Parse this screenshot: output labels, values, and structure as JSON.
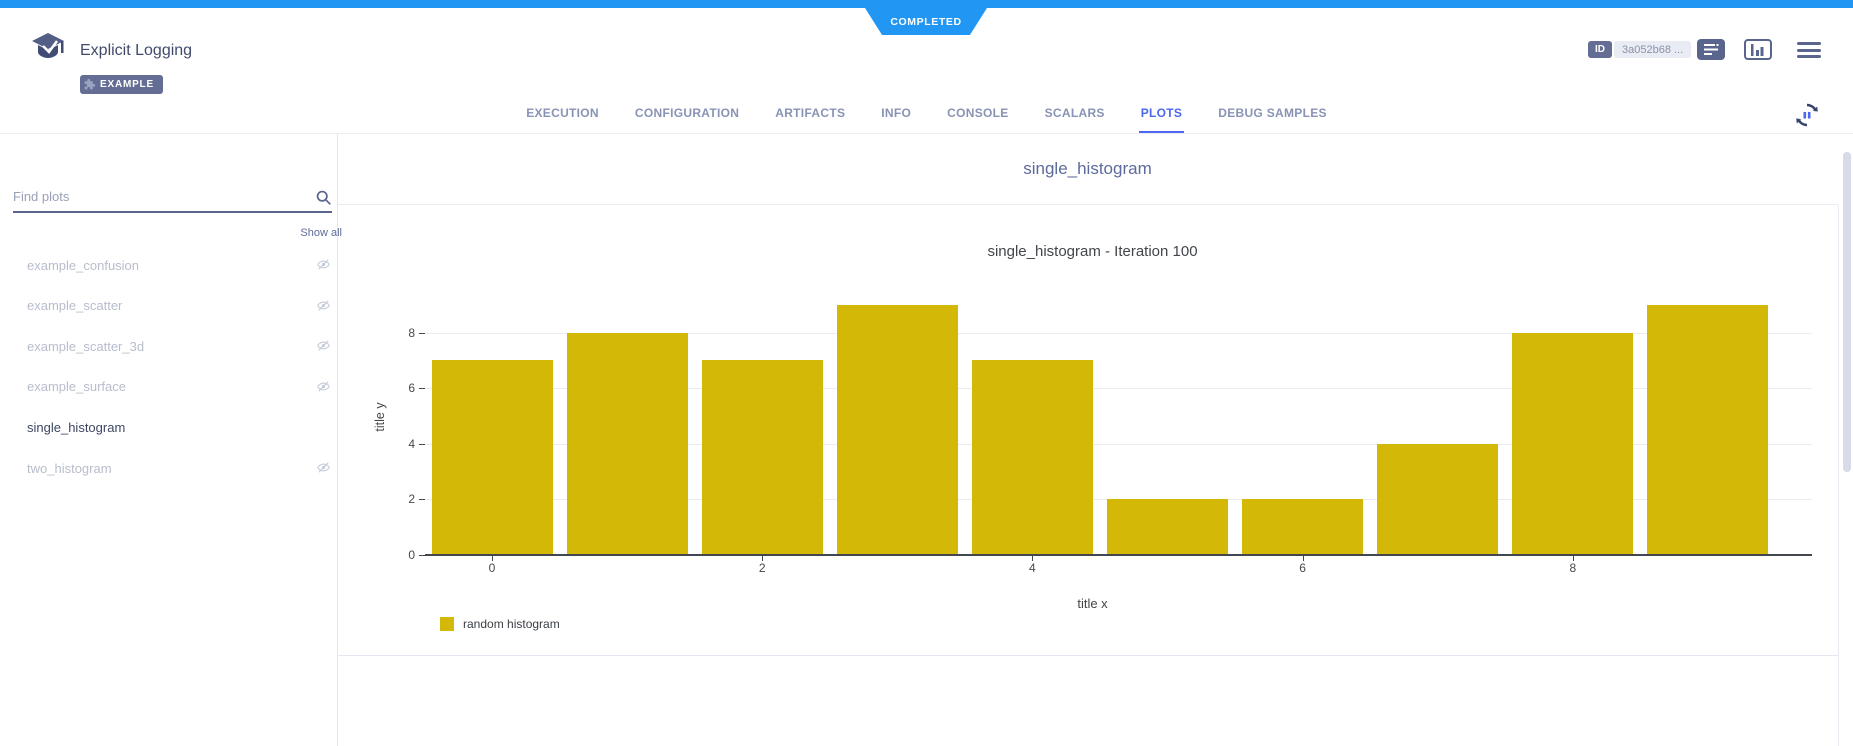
{
  "status": {
    "label": "COMPLETED",
    "color": "#2196f3"
  },
  "header": {
    "title": "Explicit Logging",
    "project_badge": "EXAMPLE",
    "id_label": "ID",
    "id_value": "3a052b68 ...",
    "icons": {
      "logo": "graduation-cap-icon",
      "badge": "puzzle-icon",
      "details": "details-icon",
      "split_view": "split-view-icon",
      "menu": "hamburger-menu-icon"
    }
  },
  "tabs": {
    "accent_color": "#4d66f0",
    "items": [
      {
        "label": "EXECUTION",
        "active": false
      },
      {
        "label": "CONFIGURATION",
        "active": false
      },
      {
        "label": "ARTIFACTS",
        "active": false
      },
      {
        "label": "INFO",
        "active": false
      },
      {
        "label": "CONSOLE",
        "active": false
      },
      {
        "label": "SCALARS",
        "active": false
      },
      {
        "label": "PLOTS",
        "active": true
      },
      {
        "label": "DEBUG SAMPLES",
        "active": false
      }
    ],
    "auto_refresh_icon": "auto-refresh-pause-icon"
  },
  "sidebar": {
    "search_placeholder": "Find plots",
    "search_icon": "search-icon",
    "show_all": "Show all",
    "hidden_icon": "eye-off-icon",
    "items": [
      {
        "label": "example_confusion",
        "hidden": true,
        "selected": false
      },
      {
        "label": "example_scatter",
        "hidden": true,
        "selected": false
      },
      {
        "label": "example_scatter_3d",
        "hidden": true,
        "selected": false
      },
      {
        "label": "example_surface",
        "hidden": true,
        "selected": false
      },
      {
        "label": "single_histogram",
        "hidden": false,
        "selected": true
      },
      {
        "label": "two_histogram",
        "hidden": true,
        "selected": false
      }
    ]
  },
  "main": {
    "group_title": "single_histogram"
  },
  "chart_data": {
    "type": "bar",
    "title": "single_histogram - Iteration 100",
    "x": [
      0,
      1,
      2,
      3,
      4,
      5,
      6,
      7,
      8,
      9
    ],
    "values": [
      7,
      8,
      7,
      9,
      7,
      2,
      2,
      4,
      8,
      9
    ],
    "series": [
      {
        "name": "random histogram",
        "values": [
          7,
          8,
          7,
          9,
          7,
          2,
          2,
          4,
          8,
          9
        ]
      }
    ],
    "bar_color": "#d4b807",
    "xlabel": "title x",
    "ylabel": "title y",
    "xticks": [
      0,
      2,
      4,
      6,
      8
    ],
    "yticks": [
      0,
      2,
      4,
      6,
      8
    ],
    "xlim": [
      -0.55,
      9.75
    ],
    "ylim": [
      0,
      9.5
    ],
    "grid": true,
    "legend_position": "bottom-left",
    "legend": [
      "random histogram"
    ]
  }
}
